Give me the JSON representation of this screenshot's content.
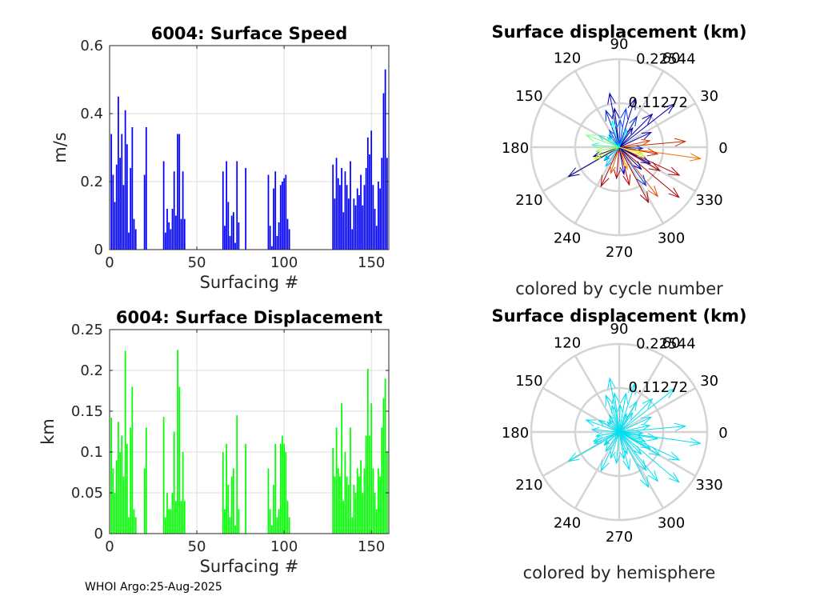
{
  "footer": "WHOI Argo:25-Aug-2025",
  "chart_data": [
    {
      "type": "bar",
      "title": "6004: Surface Speed",
      "xlabel": "Surfacing #",
      "ylabel": "m/s",
      "xlim": [
        0,
        160
      ],
      "ylim": [
        0,
        0.6
      ],
      "xticks": [
        "0",
        "50",
        "100",
        "150"
      ],
      "yticks": [
        "0",
        "0.2",
        "0.4",
        "0.6"
      ],
      "grid": true,
      "color": "#0000ff",
      "x": [
        1,
        2,
        3,
        4,
        5,
        6,
        7,
        8,
        9,
        10,
        11,
        12,
        13,
        14,
        15,
        20,
        21,
        31,
        32,
        33,
        34,
        35,
        36,
        37,
        38,
        39,
        40,
        41,
        42,
        43,
        65,
        66,
        67,
        68,
        69,
        70,
        71,
        72,
        73,
        74,
        78,
        91,
        92,
        93,
        94,
        95,
        96,
        97,
        98,
        99,
        100,
        101,
        102,
        103,
        128,
        129,
        130,
        131,
        132,
        133,
        134,
        135,
        136,
        137,
        138,
        139,
        140,
        141,
        142,
        143,
        144,
        145,
        146,
        147,
        148,
        149,
        150,
        151,
        152,
        153,
        154,
        155,
        156,
        157,
        158,
        159
      ],
      "values": [
        0.34,
        0.22,
        0.14,
        0.25,
        0.45,
        0.27,
        0.34,
        0.19,
        0.41,
        0.31,
        0.05,
        0.24,
        0.36,
        0.09,
        0.06,
        0.22,
        0.36,
        0.26,
        0.05,
        0.12,
        0.08,
        0.06,
        0.12,
        0.23,
        0.1,
        0.34,
        0.34,
        0.09,
        0.23,
        0.09,
        0.23,
        0.07,
        0.26,
        0.14,
        0.04,
        0.1,
        0.11,
        0.02,
        0.26,
        0.08,
        0.24,
        0.22,
        0.07,
        0.01,
        0.18,
        0.23,
        0.04,
        0.08,
        0.19,
        0.2,
        0.21,
        0.22,
        0.09,
        0.06,
        0.25,
        0.15,
        0.27,
        0.21,
        0.19,
        0.24,
        0.11,
        0.23,
        0.19,
        0.15,
        0.26,
        0.06,
        0.15,
        0.13,
        0.18,
        0.16,
        0.22,
        0.13,
        0.19,
        0.24,
        0.33,
        0.28,
        0.35,
        0.19,
        0.12,
        0.07,
        0.2,
        0.18,
        0.27,
        0.46,
        0.53,
        0.27
      ]
    },
    {
      "type": "compass",
      "title": "Surface displacement (km)",
      "caption": "colored by cycle number",
      "angles": [
        "0",
        "30",
        "60",
        "90",
        "120",
        "150",
        "180",
        "210",
        "240",
        "270",
        "300",
        "330"
      ],
      "rings": [
        "0.11272",
        "0.22544"
      ],
      "rmax": 0.22544,
      "arrows": [
        {
          "angle": 5,
          "r": 0.17,
          "color": "#c03000"
        },
        {
          "angle": -8,
          "r": 0.21,
          "color": "#f07000"
        },
        {
          "angle": -25,
          "r": 0.17,
          "color": "#c00000"
        },
        {
          "angle": -40,
          "r": 0.2,
          "color": "#b00000"
        },
        {
          "angle": -52,
          "r": 0.16,
          "color": "#e05000"
        },
        {
          "angle": -62,
          "r": 0.16,
          "color": "#a00000"
        },
        {
          "angle": -75,
          "r": 0.1,
          "color": "#c00000"
        },
        {
          "angle": -95,
          "r": 0.08,
          "color": "#b00000"
        },
        {
          "angle": -115,
          "r": 0.11,
          "color": "#b00000"
        },
        {
          "angle": -108,
          "r": 0.07,
          "color": "#e06000"
        },
        {
          "angle": -10,
          "r": 0.1,
          "color": "#d02000"
        },
        {
          "angle": -30,
          "r": 0.12,
          "color": "#a00000"
        },
        {
          "angle": -70,
          "r": 0.06,
          "color": "#ff9000"
        },
        {
          "angle": 12,
          "r": 0.08,
          "color": "#e04000"
        },
        {
          "angle": 38,
          "r": 0.18,
          "color": "#0000c0"
        },
        {
          "angle": 45,
          "r": 0.12,
          "color": "#0000a0"
        },
        {
          "angle": 60,
          "r": 0.09,
          "color": "#0030d0"
        },
        {
          "angle": 72,
          "r": 0.13,
          "color": "#0000b0"
        },
        {
          "angle": 80,
          "r": 0.1,
          "color": "#0040ff"
        },
        {
          "angle": 97,
          "r": 0.1,
          "color": "#000090"
        },
        {
          "angle": 100,
          "r": 0.14,
          "color": "#0000c0"
        },
        {
          "angle": 110,
          "r": 0.1,
          "color": "#0020d0"
        },
        {
          "angle": 120,
          "r": 0.05,
          "color": "#0060ff"
        },
        {
          "angle": 130,
          "r": 0.04,
          "color": "#0080ff"
        },
        {
          "angle": 200,
          "r": 0.07,
          "color": "#0000a0"
        },
        {
          "angle": 210,
          "r": 0.15,
          "color": "#000090"
        },
        {
          "angle": 222,
          "r": 0.05,
          "color": "#0030d0"
        },
        {
          "angle": -28,
          "r": 0.09,
          "color": "#0000c0"
        },
        {
          "angle": -45,
          "r": 0.08,
          "color": "#0000a0"
        },
        {
          "angle": -55,
          "r": 0.12,
          "color": "#0040e0"
        },
        {
          "angle": -80,
          "r": 0.07,
          "color": "#0000c0"
        },
        {
          "angle": -3,
          "r": 0.06,
          "color": "#0020c0"
        },
        {
          "angle": 25,
          "r": 0.09,
          "color": "#0000b0"
        },
        {
          "angle": 88,
          "r": 0.07,
          "color": "#0050ff"
        },
        {
          "angle": 55,
          "r": 0.06,
          "color": "#0000a0"
        },
        {
          "angle": 150,
          "r": 0.06,
          "color": "#40e0c0"
        },
        {
          "angle": 160,
          "r": 0.09,
          "color": "#80ff80"
        },
        {
          "angle": 175,
          "r": 0.07,
          "color": "#40ffb0"
        },
        {
          "angle": 190,
          "r": 0.06,
          "color": "#a0ff40"
        },
        {
          "angle": 205,
          "r": 0.07,
          "color": "#d0ff00"
        },
        {
          "angle": -125,
          "r": 0.06,
          "color": "#00c0ff"
        },
        {
          "angle": -140,
          "r": 0.05,
          "color": "#00e0e0"
        },
        {
          "angle": -20,
          "r": 0.07,
          "color": "#c0ff40"
        },
        {
          "angle": -15,
          "r": 0.06,
          "color": "#e0e000"
        },
        {
          "angle": 140,
          "r": 0.04,
          "color": "#00ffc0"
        },
        {
          "angle": 68,
          "r": 0.05,
          "color": "#00d0ff"
        },
        {
          "angle": 105,
          "r": 0.07,
          "color": "#00ffff"
        }
      ]
    },
    {
      "type": "bar",
      "title": "6004: Surface Displacement",
      "xlabel": "Surfacing #",
      "ylabel": "km",
      "xlim": [
        0,
        160
      ],
      "ylim": [
        0,
        0.25
      ],
      "xticks": [
        "0",
        "50",
        "100",
        "150"
      ],
      "yticks": [
        "0",
        "0.05",
        "0.1",
        "0.15",
        "0.2",
        "0.25"
      ],
      "grid": true,
      "color": "#00ff00",
      "x": [
        1,
        2,
        3,
        4,
        5,
        6,
        7,
        8,
        9,
        10,
        11,
        12,
        13,
        14,
        15,
        20,
        21,
        31,
        32,
        33,
        34,
        35,
        36,
        37,
        38,
        39,
        40,
        41,
        42,
        43,
        65,
        66,
        67,
        68,
        69,
        70,
        71,
        72,
        73,
        74,
        78,
        91,
        92,
        93,
        94,
        95,
        96,
        97,
        98,
        99,
        100,
        101,
        102,
        103,
        128,
        129,
        130,
        131,
        132,
        133,
        134,
        135,
        136,
        137,
        138,
        139,
        140,
        141,
        142,
        143,
        144,
        145,
        146,
        147,
        148,
        149,
        150,
        151,
        152,
        153,
        154,
        155,
        156,
        157,
        158,
        159
      ],
      "values": [
        0.142,
        0.08,
        0.05,
        0.09,
        0.137,
        0.1,
        0.12,
        0.07,
        0.224,
        0.11,
        0.02,
        0.13,
        0.18,
        0.03,
        0.02,
        0.08,
        0.13,
        0.143,
        0.02,
        0.05,
        0.03,
        0.03,
        0.05,
        0.125,
        0.04,
        0.225,
        0.18,
        0.04,
        0.1,
        0.04,
        0.1,
        0.03,
        0.11,
        0.06,
        0.02,
        0.07,
        0.08,
        0.01,
        0.145,
        0.03,
        0.11,
        0.08,
        0.03,
        0.01,
        0.06,
        0.11,
        0.02,
        0.03,
        0.11,
        0.12,
        0.11,
        0.1,
        0.04,
        0.02,
        0.105,
        0.07,
        0.13,
        0.08,
        0.07,
        0.16,
        0.04,
        0.1,
        0.07,
        0.06,
        0.13,
        0.02,
        0.06,
        0.05,
        0.08,
        0.07,
        0.09,
        0.05,
        0.08,
        0.12,
        0.202,
        0.12,
        0.16,
        0.08,
        0.05,
        0.03,
        0.08,
        0.07,
        0.13,
        0.166,
        0.19,
        0.1
      ]
    },
    {
      "type": "compass",
      "title": "Surface displacement (km)",
      "caption": "colored by hemisphere",
      "angles": [
        "0",
        "30",
        "60",
        "90",
        "120",
        "150",
        "180",
        "210",
        "240",
        "270",
        "300",
        "330"
      ],
      "rings": [
        "0.11272",
        "0.22544"
      ],
      "rmax": 0.22544,
      "color": "#00e0f0",
      "arrows": [
        {
          "angle": 5,
          "r": 0.17
        },
        {
          "angle": -8,
          "r": 0.21
        },
        {
          "angle": -25,
          "r": 0.17
        },
        {
          "angle": -40,
          "r": 0.2
        },
        {
          "angle": -52,
          "r": 0.16
        },
        {
          "angle": -62,
          "r": 0.16
        },
        {
          "angle": -75,
          "r": 0.1
        },
        {
          "angle": -95,
          "r": 0.08
        },
        {
          "angle": -115,
          "r": 0.11
        },
        {
          "angle": -108,
          "r": 0.07
        },
        {
          "angle": -10,
          "r": 0.1
        },
        {
          "angle": -30,
          "r": 0.12
        },
        {
          "angle": -70,
          "r": 0.06
        },
        {
          "angle": 12,
          "r": 0.08
        },
        {
          "angle": 38,
          "r": 0.18
        },
        {
          "angle": 45,
          "r": 0.12
        },
        {
          "angle": 60,
          "r": 0.09
        },
        {
          "angle": 72,
          "r": 0.13
        },
        {
          "angle": 80,
          "r": 0.1
        },
        {
          "angle": 97,
          "r": 0.1
        },
        {
          "angle": 100,
          "r": 0.14
        },
        {
          "angle": 110,
          "r": 0.1
        },
        {
          "angle": 120,
          "r": 0.05
        },
        {
          "angle": 130,
          "r": 0.04
        },
        {
          "angle": 200,
          "r": 0.07
        },
        {
          "angle": 210,
          "r": 0.15
        },
        {
          "angle": 222,
          "r": 0.05
        },
        {
          "angle": -28,
          "r": 0.09
        },
        {
          "angle": -45,
          "r": 0.08
        },
        {
          "angle": -55,
          "r": 0.12
        },
        {
          "angle": -80,
          "r": 0.07
        },
        {
          "angle": -3,
          "r": 0.06
        },
        {
          "angle": 25,
          "r": 0.09
        },
        {
          "angle": 88,
          "r": 0.07
        },
        {
          "angle": 55,
          "r": 0.06
        },
        {
          "angle": 150,
          "r": 0.06
        },
        {
          "angle": 160,
          "r": 0.09
        },
        {
          "angle": 175,
          "r": 0.07
        },
        {
          "angle": 190,
          "r": 0.06
        },
        {
          "angle": 205,
          "r": 0.07
        },
        {
          "angle": -125,
          "r": 0.06
        },
        {
          "angle": -140,
          "r": 0.05
        },
        {
          "angle": -20,
          "r": 0.07
        },
        {
          "angle": -15,
          "r": 0.06
        },
        {
          "angle": 140,
          "r": 0.04
        },
        {
          "angle": 68,
          "r": 0.05
        },
        {
          "angle": 105,
          "r": 0.07
        }
      ]
    }
  ]
}
